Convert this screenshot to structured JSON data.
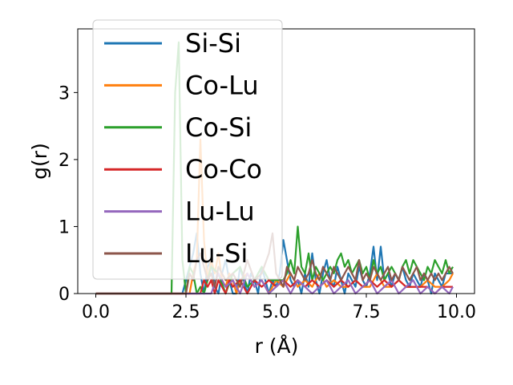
{
  "chart_data": {
    "type": "line",
    "title": "",
    "xlabel": "r (Å)",
    "ylabel": "g(r)",
    "xlim": [
      -0.5,
      10.5
    ],
    "ylim": [
      0,
      3.95
    ],
    "xticks": [
      0.0,
      2.5,
      5.0,
      7.5,
      10.0
    ],
    "xtick_labels": [
      "0.0",
      "2.5",
      "5.0",
      "7.5",
      "10.0"
    ],
    "yticks": [
      0,
      1,
      2,
      3
    ],
    "ytick_labels": [
      "0",
      "1",
      "2",
      "3"
    ],
    "grid": false,
    "legend_position": "top-left",
    "series": [
      {
        "name": "Si-Si",
        "color": "#1f77b4",
        "x": [
          0,
          2.4,
          2.5,
          2.6,
          2.7,
          2.8,
          2.9,
          3.0,
          3.1,
          3.2,
          3.3,
          3.4,
          3.5,
          3.6,
          3.7,
          3.8,
          3.9,
          4.0,
          4.1,
          4.2,
          4.3,
          4.4,
          4.5,
          4.6,
          4.7,
          4.8,
          4.9,
          5.0,
          5.1,
          5.2,
          5.3,
          5.4,
          5.5,
          5.6,
          5.7,
          5.8,
          5.9,
          6.0,
          6.1,
          6.2,
          6.3,
          6.4,
          6.5,
          6.6,
          6.7,
          6.8,
          6.9,
          7.0,
          7.1,
          7.2,
          7.3,
          7.4,
          7.5,
          7.6,
          7.7,
          7.8,
          7.9,
          8.0,
          8.1,
          8.2,
          8.3,
          8.4,
          8.5,
          8.6,
          8.7,
          8.8,
          8.9,
          9.0,
          9.1,
          9.2,
          9.3,
          9.4,
          9.5,
          9.6,
          9.7,
          9.8,
          9.9
        ],
        "y": [
          0,
          0,
          0.2,
          0.4,
          0.6,
          0.9,
          0.3,
          0.0,
          0.4,
          0.5,
          0.1,
          0.0,
          0.3,
          0.5,
          0.2,
          0.0,
          0.0,
          0.4,
          0.2,
          0.0,
          0.3,
          0.2,
          0.0,
          0.4,
          0.2,
          0.0,
          0.2,
          0.1,
          0.3,
          0.8,
          0.5,
          0.2,
          0.1,
          0.2,
          0.0,
          0.3,
          0.1,
          0.6,
          0.2,
          0.0,
          0.3,
          0.5,
          0.2,
          0.1,
          0.4,
          0.2,
          0.0,
          0.3,
          0.2,
          0.1,
          0.4,
          0.2,
          0.1,
          0.3,
          0.7,
          0.2,
          0.7,
          0.2,
          0.3,
          0.1,
          0.3,
          0.2,
          0.4,
          0.2,
          0.1,
          0.3,
          0.2,
          0.1,
          0.3,
          0.2,
          0.0,
          0.3,
          0.2,
          0.1,
          0.3,
          0.3,
          0.3
        ]
      },
      {
        "name": "Co-Lu",
        "color": "#ff7f0e",
        "x": [
          0,
          2.6,
          2.7,
          2.8,
          2.9,
          3.0,
          3.1,
          3.2,
          3.3,
          3.4,
          3.5,
          3.6,
          3.7,
          3.8,
          3.9,
          4.0,
          4.2,
          4.4,
          4.6,
          4.8,
          5.0,
          5.2,
          5.4,
          5.6,
          5.8,
          6.0,
          6.2,
          6.4,
          6.6,
          6.8,
          7.0,
          7.2,
          7.4,
          7.6,
          7.8,
          8.0,
          8.2,
          8.4,
          8.6,
          8.8,
          9.0,
          9.2,
          9.4,
          9.6,
          9.8,
          9.9
        ],
        "y": [
          0,
          0,
          0.3,
          0.5,
          2.3,
          0.8,
          0.2,
          0.5,
          0.3,
          0.6,
          0.2,
          0.1,
          0.3,
          0.2,
          0.0,
          0.2,
          0.3,
          0.1,
          0.2,
          0.0,
          0.2,
          0.1,
          0.3,
          0.1,
          0.2,
          0.1,
          0.3,
          0.1,
          0.2,
          0.1,
          0.1,
          0.2,
          0.1,
          0.1,
          0.3,
          0.1,
          0.1,
          0.2,
          0.1,
          0.1,
          0.1,
          0.2,
          0.1,
          0.1,
          0.2,
          0.3
        ]
      },
      {
        "name": "Co-Si",
        "color": "#2ca02c",
        "x": [
          0,
          2.1,
          2.2,
          2.3,
          2.4,
          2.5,
          2.6,
          2.7,
          2.8,
          2.9,
          3.0,
          3.2,
          3.4,
          3.6,
          3.8,
          4.0,
          4.2,
          4.4,
          4.6,
          4.8,
          5.0,
          5.2,
          5.3,
          5.4,
          5.5,
          5.6,
          5.7,
          5.8,
          5.9,
          6.0,
          6.1,
          6.2,
          6.3,
          6.4,
          6.5,
          6.6,
          6.7,
          6.8,
          6.9,
          7.0,
          7.1,
          7.2,
          7.3,
          7.4,
          7.5,
          7.6,
          7.7,
          7.8,
          7.9,
          8.0,
          8.1,
          8.2,
          8.3,
          8.4,
          8.5,
          8.6,
          8.7,
          8.8,
          8.9,
          9.0,
          9.1,
          9.2,
          9.3,
          9.4,
          9.5,
          9.6,
          9.7,
          9.8,
          9.9
        ],
        "y": [
          0,
          0,
          3.0,
          3.75,
          0.5,
          0.0,
          0.4,
          0.3,
          0.0,
          0.1,
          0.0,
          0.4,
          0.3,
          0.0,
          0.3,
          0.4,
          0.1,
          0.2,
          0.4,
          0.2,
          0.2,
          0.2,
          0.3,
          0.5,
          0.3,
          1.0,
          0.4,
          0.3,
          0.6,
          0.2,
          0.4,
          0.3,
          0.2,
          0.3,
          0.4,
          0.3,
          0.5,
          0.6,
          0.4,
          0.5,
          0.3,
          0.4,
          0.5,
          0.3,
          0.4,
          0.2,
          0.5,
          0.3,
          0.4,
          0.2,
          0.3,
          0.4,
          0.3,
          0.2,
          0.4,
          0.5,
          0.3,
          0.5,
          0.4,
          0.3,
          0.2,
          0.4,
          0.3,
          0.5,
          0.4,
          0.3,
          0.5,
          0.3,
          0.4
        ]
      },
      {
        "name": "Co-Co",
        "color": "#d62728",
        "x": [
          0,
          2.9,
          3.0,
          3.1,
          3.2,
          3.3,
          3.4,
          3.5,
          3.6,
          3.7,
          3.8,
          4.0,
          4.2,
          4.4,
          4.6,
          4.8,
          5.0,
          5.2,
          5.4,
          5.6,
          5.8,
          6.0,
          6.2,
          6.4,
          6.6,
          6.8,
          7.0,
          7.2,
          7.4,
          7.6,
          7.8,
          8.0,
          8.2,
          8.4,
          8.6,
          8.8,
          9.0,
          9.2,
          9.4,
          9.6,
          9.8,
          9.9
        ],
        "y": [
          0,
          0,
          0.2,
          0.1,
          0.2,
          0.0,
          0.2,
          0.1,
          0.0,
          0.2,
          0.1,
          0.2,
          0.0,
          0.2,
          0.1,
          0.2,
          0.1,
          0.2,
          0.1,
          0.2,
          0.1,
          0.2,
          0.1,
          0.2,
          0.1,
          0.2,
          0.1,
          0.2,
          0.1,
          0.2,
          0.1,
          0.2,
          0.1,
          0.2,
          0.1,
          0.1,
          0.1,
          0.1,
          0.0,
          0.1,
          0.1,
          0.1
        ]
      },
      {
        "name": "Lu-Lu",
        "color": "#9467bd",
        "x": [
          0,
          3.2,
          3.4,
          3.6,
          3.8,
          4.0,
          4.2,
          4.4,
          4.6,
          4.8,
          5.0,
          5.2,
          5.4,
          5.6,
          5.8,
          6.0,
          6.2,
          6.4,
          6.6,
          6.8,
          7.0,
          7.2,
          7.4,
          7.6,
          7.8,
          8.0,
          8.2,
          8.4,
          8.6,
          8.8,
          9.0,
          9.2,
          9.4,
          9.6,
          9.8,
          9.9
        ],
        "y": [
          0,
          0,
          0.3,
          0.1,
          0.2,
          0.0,
          0.3,
          0.1,
          0.2,
          0.0,
          0.1,
          0.2,
          0.0,
          0.2,
          0.1,
          0.0,
          0.1,
          0.2,
          0.0,
          0.1,
          0.2,
          0.0,
          0.1,
          0.2,
          0.0,
          0.1,
          0.2,
          0.0,
          0.1,
          0.2,
          0.0,
          0.1,
          0.0,
          0.1,
          0.0,
          0.1
        ]
      },
      {
        "name": "Lu-Si",
        "color": "#8c564b",
        "x": [
          0,
          2.5,
          2.6,
          2.7,
          2.8,
          2.9,
          3.0,
          3.1,
          3.2,
          3.3,
          3.4,
          3.6,
          3.8,
          4.0,
          4.2,
          4.4,
          4.6,
          4.8,
          4.9,
          5.0,
          5.1,
          5.2,
          5.3,
          5.4,
          5.5,
          5.6,
          5.7,
          5.8,
          5.9,
          6.0,
          6.1,
          6.2,
          6.3,
          6.4,
          6.5,
          6.6,
          6.7,
          6.8,
          6.9,
          7.0,
          7.1,
          7.2,
          7.3,
          7.4,
          7.5,
          7.6,
          7.7,
          7.8,
          7.9,
          8.0,
          8.1,
          8.2,
          8.3,
          8.4,
          8.5,
          8.6,
          8.7,
          8.8,
          8.9,
          9.0,
          9.1,
          9.2,
          9.3,
          9.4,
          9.5,
          9.6,
          9.7,
          9.8,
          9.9
        ],
        "y": [
          0,
          0,
          0.3,
          0.2,
          0.5,
          0.6,
          0.4,
          0.2,
          0.3,
          0.1,
          0.4,
          0.2,
          0.3,
          0.1,
          0.5,
          0.2,
          0.3,
          0.6,
          0.9,
          0.3,
          0.2,
          0.1,
          0.4,
          0.3,
          0.2,
          0.4,
          0.3,
          0.2,
          0.3,
          0.5,
          0.3,
          0.2,
          0.4,
          0.3,
          0.2,
          0.4,
          0.3,
          0.2,
          0.3,
          0.4,
          0.3,
          0.2,
          0.5,
          0.2,
          0.3,
          0.2,
          0.4,
          0.3,
          0.2,
          0.3,
          0.4,
          0.2,
          0.3,
          0.2,
          0.4,
          0.3,
          0.2,
          0.3,
          0.4,
          0.2,
          0.3,
          0.2,
          0.3,
          0.2,
          0.3,
          0.2,
          0.3,
          0.4,
          0.3
        ]
      }
    ]
  }
}
